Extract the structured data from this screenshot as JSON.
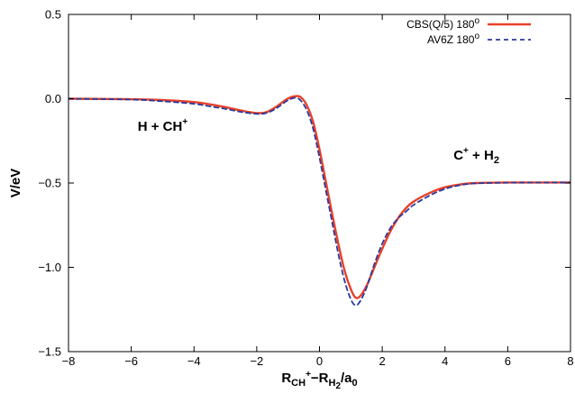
{
  "chart_data": {
    "type": "line",
    "title": "",
    "xlabel": {
      "main": "R",
      "sub1": "CH",
      "sup1": "+",
      "mid": "−R",
      "sub2": "H",
      "sub2sub": "2",
      "tail": "/a",
      "sub3": "0"
    },
    "ylabel": "V/eV",
    "xlim": [
      -8,
      8
    ],
    "ylim": [
      -1.5,
      0.5
    ],
    "x_ticks": [
      -8,
      -6,
      -4,
      -2,
      0,
      2,
      4,
      6,
      8
    ],
    "x_tick_labels": [
      "−8",
      "−6",
      "−4",
      "−2",
      "0",
      "2",
      "4",
      "6",
      "8"
    ],
    "y_ticks": [
      -1.5,
      -1.0,
      -0.5,
      0.0,
      0.5
    ],
    "y_tick_labels": [
      "−1.5",
      "−1.0",
      "−0.5",
      "0.0",
      "0.5"
    ],
    "grid": false,
    "legend_position": "top-right",
    "annotations": [
      {
        "id": "reactant",
        "main": "H + CH",
        "sup": "+",
        "x": -5.0,
        "y": -0.19
      },
      {
        "id": "product",
        "main": "C",
        "sup": "+",
        "tail": " + H",
        "sub": "2",
        "x": 5.0,
        "y": -0.36
      }
    ],
    "series": [
      {
        "name": "CBS(Q/5) 180",
        "name_sup": "o",
        "color": "#e8402a",
        "style": "solid",
        "points": [
          [
            -8,
            0.0
          ],
          [
            -6,
            -0.003
          ],
          [
            -5,
            -0.008
          ],
          [
            -4,
            -0.02
          ],
          [
            -3.5,
            -0.033
          ],
          [
            -3,
            -0.05
          ],
          [
            -2.5,
            -0.07
          ],
          [
            -2,
            -0.085
          ],
          [
            -1.7,
            -0.08
          ],
          [
            -1.4,
            -0.05
          ],
          [
            -1.1,
            -0.01
          ],
          [
            -0.9,
            0.01
          ],
          [
            -0.75,
            0.015
          ],
          [
            -0.6,
            0.01
          ],
          [
            -0.4,
            -0.04
          ],
          [
            -0.2,
            -0.14
          ],
          [
            0,
            -0.3
          ],
          [
            0.2,
            -0.49
          ],
          [
            0.4,
            -0.68
          ],
          [
            0.6,
            -0.86
          ],
          [
            0.8,
            -1.02
          ],
          [
            1.0,
            -1.13
          ],
          [
            1.15,
            -1.18
          ],
          [
            1.3,
            -1.17
          ],
          [
            1.5,
            -1.11
          ],
          [
            1.75,
            -1.0
          ],
          [
            2.0,
            -0.89
          ],
          [
            2.25,
            -0.79
          ],
          [
            2.5,
            -0.71
          ],
          [
            2.75,
            -0.65
          ],
          [
            3.0,
            -0.61
          ],
          [
            3.5,
            -0.56
          ],
          [
            4.0,
            -0.525
          ],
          [
            4.5,
            -0.508
          ],
          [
            5,
            -0.5
          ],
          [
            6,
            -0.497
          ],
          [
            8,
            -0.497
          ]
        ]
      },
      {
        "name": "AV6Z 180",
        "name_sup": "o",
        "color": "#2a3a9e",
        "style": "dashed",
        "points": [
          [
            -8,
            0.0
          ],
          [
            -6,
            -0.005
          ],
          [
            -5,
            -0.015
          ],
          [
            -4,
            -0.03
          ],
          [
            -3.5,
            -0.045
          ],
          [
            -3,
            -0.06
          ],
          [
            -2.5,
            -0.078
          ],
          [
            -2,
            -0.09
          ],
          [
            -1.7,
            -0.085
          ],
          [
            -1.4,
            -0.06
          ],
          [
            -1.1,
            -0.02
          ],
          [
            -0.9,
            0.0
          ],
          [
            -0.75,
            0.005
          ],
          [
            -0.6,
            -0.01
          ],
          [
            -0.4,
            -0.07
          ],
          [
            -0.2,
            -0.18
          ],
          [
            0,
            -0.35
          ],
          [
            0.2,
            -0.54
          ],
          [
            0.4,
            -0.73
          ],
          [
            0.6,
            -0.92
          ],
          [
            0.8,
            -1.08
          ],
          [
            1.0,
            -1.19
          ],
          [
            1.15,
            -1.225
          ],
          [
            1.3,
            -1.2
          ],
          [
            1.5,
            -1.12
          ],
          [
            1.75,
            -0.98
          ],
          [
            2.0,
            -0.86
          ],
          [
            2.25,
            -0.77
          ],
          [
            2.5,
            -0.71
          ],
          [
            2.75,
            -0.67
          ],
          [
            3.0,
            -0.63
          ],
          [
            3.5,
            -0.575
          ],
          [
            4.0,
            -0.535
          ],
          [
            4.5,
            -0.512
          ],
          [
            5,
            -0.502
          ],
          [
            6,
            -0.498
          ],
          [
            8,
            -0.497
          ]
        ]
      }
    ]
  }
}
